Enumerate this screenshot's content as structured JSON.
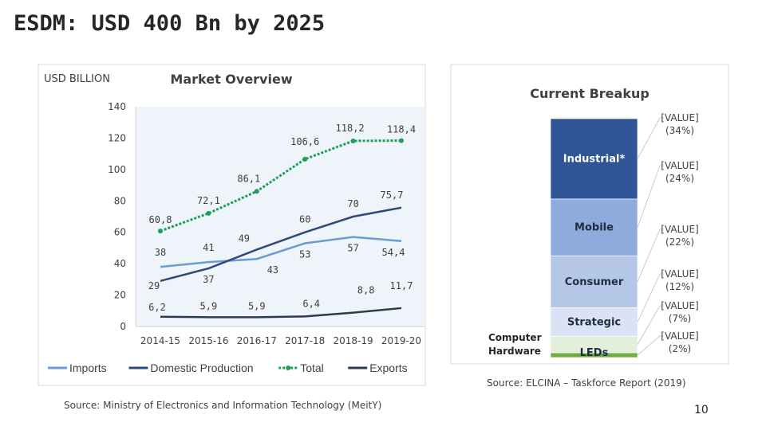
{
  "title": "ESDM: USD 400 Bn by 2025",
  "page_number": "10",
  "chart_data": [
    {
      "type": "line",
      "title": "Market Overview",
      "ylabel": "USD BILLION",
      "ylim": [
        0,
        140
      ],
      "yticks": [
        "0",
        "20",
        "40",
        "60",
        "80",
        "100",
        "120",
        "140"
      ],
      "categories": [
        "2014-15",
        "2015-16",
        "2016-17",
        "2017-18",
        "2018-19",
        "2019-20"
      ],
      "legend_position": "bottom",
      "series": [
        {
          "name": "Imports",
          "values": [
            38,
            41,
            43,
            53,
            57,
            54.4
          ],
          "labels": [
            "38",
            "41",
            "43",
            "53",
            "57",
            "54,4"
          ],
          "color": "#6b9bd1"
        },
        {
          "name": "Domestic Production",
          "values": [
            29,
            37,
            49,
            60,
            70,
            75.7
          ],
          "labels": [
            "29",
            "37",
            "49",
            "60",
            "70",
            "75,7"
          ],
          "color": "#2e4a7d"
        },
        {
          "name": "Total",
          "values": [
            60.8,
            72.1,
            86.1,
            106.6,
            118.2,
            118.4
          ],
          "labels": [
            "60,8",
            "72,1",
            "86,1",
            "106,6",
            "118,2",
            "118,4"
          ],
          "color": "#1e9e58"
        },
        {
          "name": "Exports",
          "values": [
            6.2,
            5.9,
            5.9,
            6.4,
            8.8,
            11.7
          ],
          "labels": [
            "6,2",
            "5,9",
            "5,9",
            "6,4",
            "8,8",
            "11,7"
          ],
          "color": "#2b3a4e"
        }
      ],
      "source": "Source: Ministry of Electronics and Information Technology (MeitY)"
    },
    {
      "type": "bar",
      "stacked": true,
      "title": "Current Breakup",
      "segments": [
        {
          "name": "Industrial*",
          "percent": 34,
          "label": "[VALUE]",
          "pct_label": "(34%)",
          "color": "#2f5597",
          "text_color": "#ffffff"
        },
        {
          "name": "Mobile",
          "percent": 24,
          "label": "[VALUE]",
          "pct_label": "(24%)",
          "color": "#8faadc",
          "text_color": "#1f2d40"
        },
        {
          "name": "Consumer",
          "percent": 22,
          "label": "[VALUE]",
          "pct_label": "(22%)",
          "color": "#b4c7e7",
          "text_color": "#1f2d40"
        },
        {
          "name": "Strategic",
          "percent": 12,
          "label": "[VALUE]",
          "pct_label": "(12%)",
          "color": "#dae3f3",
          "text_color": "#1f2d40"
        },
        {
          "name": "Computer Hardware",
          "percent": 7,
          "label": "[VALUE]",
          "pct_label": "(7%)",
          "color": "#e2efda",
          "text_color": "#1f2d40"
        },
        {
          "name": "LEDs",
          "percent": 2,
          "label": "[VALUE]",
          "pct_label": "(2%)",
          "color": "#70ad47",
          "text_color": "#1f2d40"
        }
      ],
      "source": "Source: ELCINA – Taskforce Report (2019)"
    }
  ]
}
